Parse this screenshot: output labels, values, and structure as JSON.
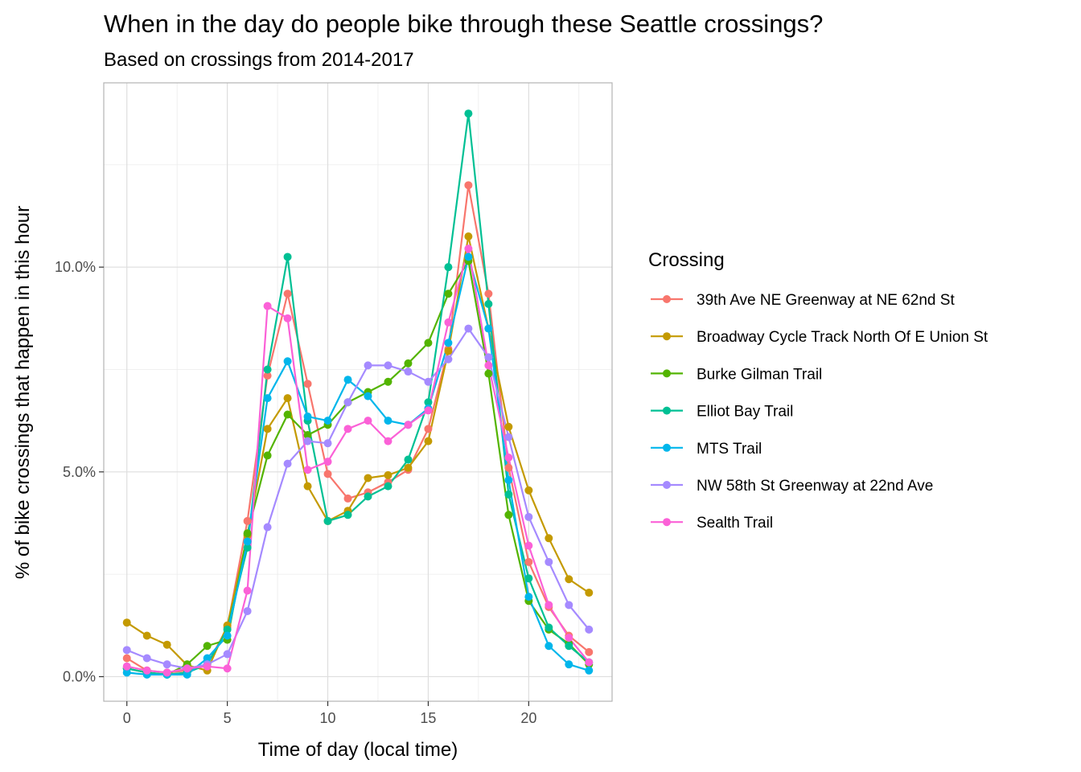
{
  "chart_data": {
    "type": "line",
    "title": "When in the day do people bike through these Seattle crossings?",
    "subtitle": "Based on crossings from 2014-2017",
    "xlabel": "Time of day (local time)",
    "ylabel": "% of bike crossings that happen in this hour",
    "x": [
      0,
      1,
      2,
      3,
      4,
      5,
      6,
      7,
      8,
      9,
      10,
      11,
      12,
      13,
      14,
      15,
      16,
      17,
      18,
      19,
      20,
      21,
      22,
      23
    ],
    "xlim": [
      -1.15,
      24.15
    ],
    "ylim": [
      -0.6,
      14.5
    ],
    "xticks": [
      0,
      5,
      10,
      15,
      20
    ],
    "xtick_labels": [
      "0",
      "5",
      "10",
      "15",
      "20"
    ],
    "yticks": [
      0,
      5,
      10
    ],
    "ytick_labels": [
      "0.0%",
      "5.0%",
      "10.0%"
    ],
    "grid": true,
    "legend_title": "Crossing",
    "legend_position": "right",
    "series": [
      {
        "name": "39th Ave NE Greenway at NE 62nd St",
        "color": "#F8766D",
        "values": [
          0.45,
          0.15,
          0.1,
          0.15,
          0.3,
          1.2,
          3.8,
          7.35,
          9.35,
          7.15,
          4.95,
          4.35,
          4.5,
          4.75,
          5.05,
          6.05,
          8.0,
          12.0,
          9.35,
          5.1,
          2.8,
          1.7,
          1.0,
          0.6
        ]
      },
      {
        "name": "Broadway Cycle Track North Of E Union St",
        "color": "#C49A00",
        "values": [
          1.32,
          1.0,
          0.78,
          0.28,
          0.15,
          1.25,
          3.45,
          6.05,
          6.8,
          4.65,
          3.8,
          4.05,
          4.85,
          4.92,
          5.1,
          5.75,
          7.95,
          10.75,
          8.5,
          6.1,
          4.55,
          3.38,
          2.38,
          2.05
        ]
      },
      {
        "name": "Burke Gilman Trail",
        "color": "#53B400",
        "values": [
          0.2,
          0.1,
          0.05,
          0.3,
          0.75,
          0.9,
          3.5,
          5.4,
          6.4,
          5.9,
          6.15,
          6.7,
          6.95,
          7.2,
          7.65,
          8.15,
          9.35,
          10.15,
          7.4,
          3.95,
          1.85,
          1.15,
          0.8,
          0.3
        ]
      },
      {
        "name": "Elliot Bay Trail",
        "color": "#00C094",
        "values": [
          0.2,
          0.1,
          0.05,
          0.1,
          0.3,
          1.15,
          3.15,
          7.5,
          10.25,
          6.25,
          3.8,
          3.95,
          4.4,
          4.65,
          5.3,
          6.7,
          10.0,
          13.75,
          9.1,
          4.45,
          2.4,
          1.2,
          0.75,
          0.35
        ]
      },
      {
        "name": "MTS Trail",
        "color": "#00B6EB",
        "values": [
          0.1,
          0.05,
          0.05,
          0.05,
          0.45,
          1.0,
          3.3,
          6.8,
          7.7,
          6.35,
          6.25,
          7.25,
          6.85,
          6.25,
          6.15,
          6.55,
          8.15,
          10.25,
          8.5,
          4.8,
          1.95,
          0.75,
          0.3,
          0.15
        ]
      },
      {
        "name": "NW 58th St Greenway at 22nd Ave",
        "color": "#A58AFF",
        "values": [
          0.65,
          0.45,
          0.3,
          0.2,
          0.3,
          0.55,
          1.6,
          3.65,
          5.2,
          5.75,
          5.7,
          6.7,
          7.6,
          7.6,
          7.45,
          7.2,
          7.75,
          8.5,
          7.8,
          5.85,
          3.9,
          2.8,
          1.75,
          1.15
        ]
      },
      {
        "name": "Sealth Trail",
        "color": "#FB61D7",
        "values": [
          0.25,
          0.15,
          0.1,
          0.2,
          0.25,
          0.2,
          2.1,
          9.05,
          8.75,
          5.05,
          5.25,
          6.05,
          6.25,
          5.75,
          6.15,
          6.5,
          8.65,
          10.45,
          7.6,
          5.35,
          3.2,
          1.75,
          0.95,
          0.35
        ]
      }
    ]
  }
}
